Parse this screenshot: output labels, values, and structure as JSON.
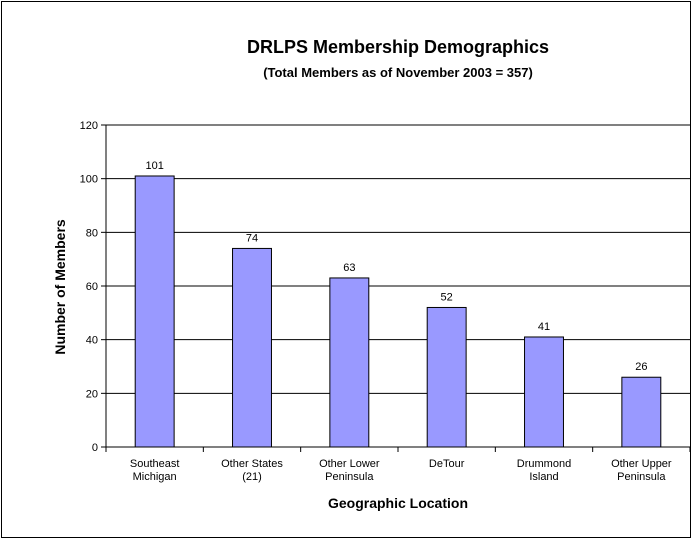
{
  "chart_data": {
    "type": "bar",
    "title": "DRLPS Membership Demographics",
    "subtitle": "(Total Members as of November 2003 = 357)",
    "xlabel": "Geographic Location",
    "ylabel": "Number of Members",
    "categories": [
      [
        "Southeast",
        "Michigan"
      ],
      [
        "Other States",
        "(21)"
      ],
      [
        "Other Lower",
        "Peninsula"
      ],
      [
        "DeTour"
      ],
      [
        "Drummond",
        "Island"
      ],
      [
        "Other Upper",
        "Peninsula"
      ]
    ],
    "values": [
      101,
      74,
      63,
      52,
      41,
      26
    ],
    "data_labels": [
      "101",
      "74",
      "63",
      "52",
      "41",
      "26"
    ],
    "ylim": [
      0,
      120
    ],
    "yticks": [
      0,
      20,
      40,
      60,
      80,
      100,
      120
    ],
    "grid": "horizontal",
    "legend": "none",
    "colors": {
      "bar_fill": "#9999FF",
      "bar_stroke": "#000000",
      "grid": "#000000",
      "background": "#FFFFFF"
    }
  }
}
